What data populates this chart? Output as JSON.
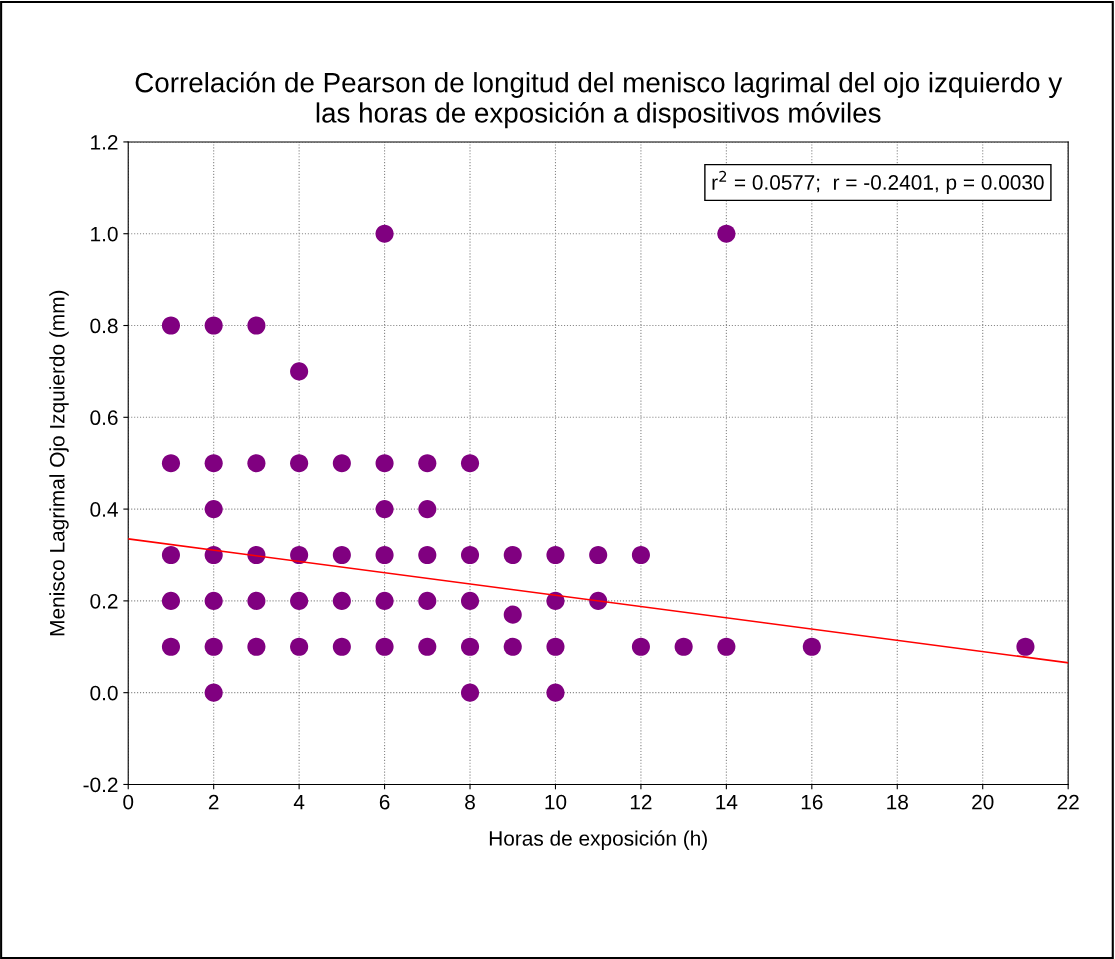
{
  "chart_data": {
    "type": "scatter",
    "title": "Correlación de Pearson de longitud del menisco lagrimal del ojo izquierdo y\nlas horas de exposición a dispositivos móviles",
    "xlabel": "Horas de exposición (h)",
    "ylabel": "Menisco Lagrimal Ojo Izquierdo (mm)",
    "annotations": [
      "r$^{2}$ = 0.0577;  r = -0.2401, p = 0.0030"
    ],
    "series": [
      {
        "color": "#800080",
        "marker": "circle",
        "x": [
          1,
          1,
          1,
          1,
          1,
          2,
          2,
          2,
          2,
          2,
          2,
          2,
          3,
          3,
          3,
          3,
          3,
          4,
          4,
          4,
          4,
          4,
          5,
          5,
          5,
          5,
          6,
          6,
          6,
          6,
          6,
          6,
          7,
          7,
          7,
          7,
          7,
          8,
          8,
          8,
          8,
          8,
          9,
          9,
          9,
          10,
          10,
          10,
          10,
          11,
          11,
          12,
          12,
          13,
          14,
          14,
          16,
          21
        ],
        "values": [
          0.8,
          0.5,
          0.3,
          0.2,
          0.1,
          0.8,
          0.5,
          0.4,
          0.3,
          0.2,
          0.1,
          0.0,
          0.8,
          0.5,
          0.3,
          0.2,
          0.1,
          0.7,
          0.5,
          0.3,
          0.2,
          0.1,
          0.5,
          0.3,
          0.2,
          0.1,
          1.0,
          0.5,
          0.4,
          0.3,
          0.2,
          0.1,
          0.5,
          0.4,
          0.3,
          0.2,
          0.1,
          0.5,
          0.3,
          0.2,
          0.1,
          0.0,
          0.3,
          0.17,
          0.1,
          0.3,
          0.2,
          0.1,
          0.0,
          0.3,
          0.2,
          0.3,
          0.1,
          0.1,
          1.0,
          0.1,
          0.1,
          0.1
        ]
      },
      {
        "type": "line",
        "color": "#ff0000",
        "x": [
          0,
          22
        ],
        "values": [
          0.335,
          0.065
        ]
      }
    ],
    "xlim": [
      0,
      22
    ],
    "xticks": [
      0,
      2,
      4,
      6,
      8,
      10,
      12,
      14,
      16,
      18,
      20,
      22
    ],
    "ylim": [
      -0.2,
      1.2
    ],
    "yticks": [
      {
        "value": -0.2,
        "label": "-0.2"
      },
      {
        "value": 0,
        "label": "0.0"
      },
      {
        "value": 0.2,
        "label": "0.2"
      },
      {
        "value": 0.4,
        "label": "0.4"
      },
      {
        "value": 0.6,
        "label": "0.6"
      },
      {
        "value": 0.8,
        "label": "0.8"
      },
      {
        "value": 1.0,
        "label": "1.0"
      },
      {
        "value": 1.2,
        "label": "1.2"
      }
    ],
    "grid": true
  }
}
